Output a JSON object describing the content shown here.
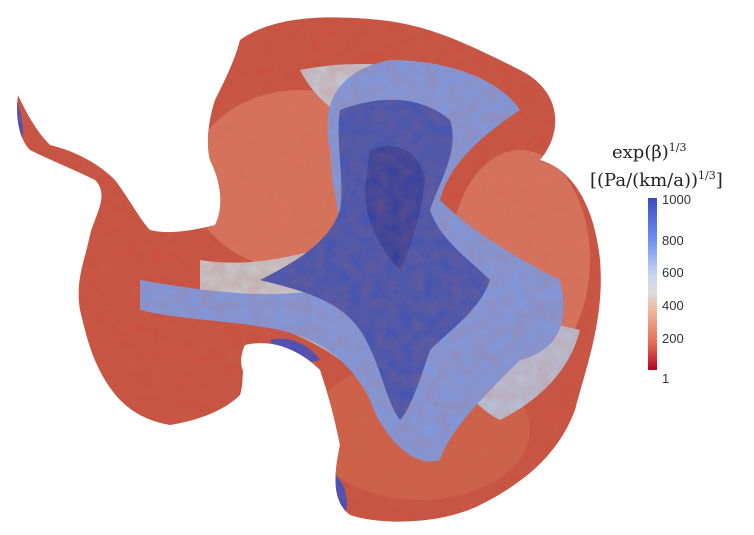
{
  "colorbar": {
    "title_line1_base": "exp(β)",
    "title_line1_exp": "1/3",
    "title_line2_base": "[(Pa/(km/a))",
    "title_line2_exp": "1/3",
    "title_line2_close": "]",
    "ticks": [
      "1000",
      "800",
      "600",
      "400",
      "200",
      "1"
    ],
    "range": [
      1,
      1000
    ],
    "colormap": [
      "#b40426",
      "#e36a53",
      "#f2b79b",
      "#dddcdc",
      "#c9d7f0",
      "#6f92f3",
      "#3b4cc0"
    ]
  }
}
